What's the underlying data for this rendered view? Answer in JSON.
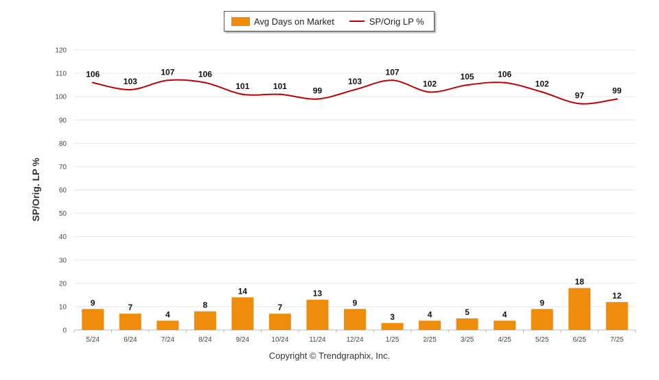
{
  "chart_data": {
    "type": "bar",
    "categories": [
      "5/24",
      "6/24",
      "7/24",
      "8/24",
      "9/24",
      "10/24",
      "11/24",
      "12/24",
      "1/25",
      "2/25",
      "3/25",
      "4/25",
      "5/25",
      "6/25",
      "7/25"
    ],
    "series": [
      {
        "name": "Avg Days on Market",
        "type": "bar",
        "color": "#f08c0c",
        "values": [
          9,
          7,
          4,
          8,
          14,
          7,
          13,
          9,
          3,
          4,
          5,
          4,
          9,
          18,
          12
        ]
      },
      {
        "name": "SP/Orig LP %",
        "type": "line",
        "color": "#c00000",
        "values": [
          106,
          103,
          107,
          106,
          101,
          101,
          99,
          103,
          107,
          102,
          105,
          106,
          102,
          97,
          99
        ]
      }
    ],
    "ylabel": "SP/Orig. LP %",
    "ylim": [
      0,
      120
    ],
    "yticks": [
      0,
      10,
      20,
      30,
      40,
      50,
      60,
      70,
      80,
      90,
      100,
      110,
      120
    ],
    "grid": true,
    "legend_position": "top-center"
  },
  "footer": {
    "copyright": "Copyright © Trendgraphix, Inc."
  }
}
